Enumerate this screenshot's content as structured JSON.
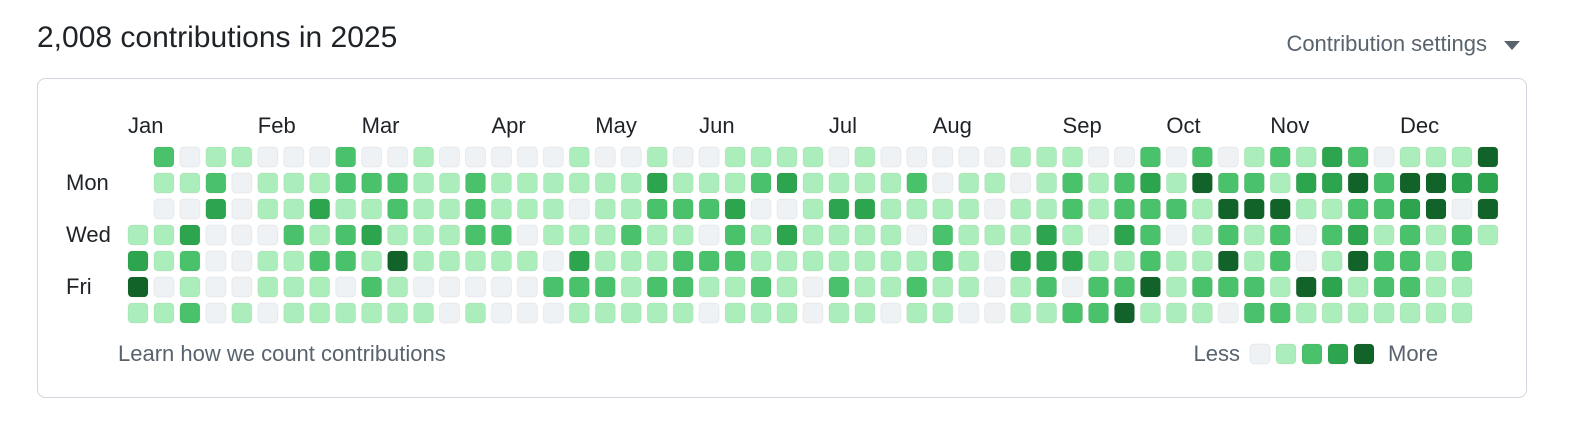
{
  "header": {
    "title": "2,008 contributions in 2025",
    "settings": "Contribution settings"
  },
  "calendar": {
    "months": [
      "Jan",
      "Feb",
      "Mar",
      "Apr",
      "May",
      "Jun",
      "Jul",
      "Aug",
      "Sep",
      "Oct",
      "Nov",
      "Dec"
    ],
    "day_labels": [
      null,
      "Mon",
      null,
      "Wed",
      null,
      "Fri",
      null
    ],
    "level_colors": [
      "#eff2f5",
      "#aceebb",
      "#4ac26b",
      "#2da44e",
      "#116329"
    ],
    "rows": [
      [
        null,
        2,
        0,
        1,
        1,
        0,
        0,
        0,
        2,
        0,
        0,
        1,
        0,
        0,
        0,
        0,
        0,
        1,
        0,
        0,
        1,
        0,
        0,
        1,
        1,
        1,
        1,
        0,
        1,
        0,
        0,
        0,
        0,
        0,
        1,
        1,
        1,
        0,
        0,
        2,
        0,
        2,
        0,
        1,
        2,
        1,
        3,
        2,
        0,
        1,
        1,
        1,
        4
      ],
      [
        null,
        1,
        1,
        2,
        0,
        1,
        1,
        1,
        2,
        2,
        2,
        1,
        1,
        2,
        1,
        1,
        1,
        1,
        1,
        1,
        3,
        1,
        1,
        1,
        2,
        3,
        1,
        1,
        1,
        1,
        2,
        0,
        1,
        1,
        0,
        1,
        2,
        1,
        2,
        3,
        1,
        4,
        2,
        2,
        1,
        3,
        3,
        4,
        2,
        4,
        4,
        3,
        3
      ],
      [
        null,
        0,
        0,
        3,
        0,
        1,
        1,
        3,
        1,
        1,
        2,
        1,
        1,
        2,
        1,
        1,
        1,
        0,
        1,
        1,
        2,
        2,
        2,
        3,
        0,
        0,
        1,
        3,
        3,
        1,
        1,
        1,
        1,
        0,
        1,
        1,
        2,
        1,
        2,
        2,
        2,
        1,
        4,
        4,
        4,
        1,
        1,
        2,
        2,
        3,
        4,
        0,
        4
      ],
      [
        1,
        1,
        3,
        0,
        0,
        0,
        2,
        1,
        2,
        3,
        1,
        1,
        1,
        2,
        2,
        0,
        1,
        1,
        1,
        2,
        1,
        1,
        0,
        2,
        1,
        3,
        1,
        1,
        1,
        1,
        0,
        2,
        1,
        1,
        1,
        3,
        1,
        0,
        3,
        2,
        0,
        1,
        2,
        1,
        2,
        0,
        2,
        3,
        1,
        2,
        1,
        2,
        1
      ],
      [
        3,
        1,
        2,
        0,
        0,
        1,
        1,
        2,
        2,
        1,
        4,
        1,
        1,
        1,
        1,
        1,
        0,
        3,
        1,
        1,
        1,
        2,
        2,
        2,
        1,
        1,
        1,
        1,
        1,
        1,
        1,
        2,
        1,
        0,
        3,
        3,
        3,
        1,
        1,
        2,
        1,
        1,
        4,
        1,
        2,
        0,
        1,
        4,
        2,
        2,
        1,
        2,
        null
      ],
      [
        4,
        0,
        1,
        0,
        0,
        1,
        1,
        1,
        0,
        2,
        1,
        0,
        0,
        0,
        0,
        0,
        2,
        2,
        2,
        1,
        2,
        2,
        1,
        1,
        2,
        1,
        0,
        2,
        1,
        1,
        2,
        1,
        1,
        0,
        1,
        2,
        0,
        2,
        2,
        4,
        1,
        2,
        2,
        2,
        1,
        4,
        3,
        1,
        2,
        2,
        1,
        1,
        null
      ],
      [
        1,
        1,
        2,
        0,
        1,
        0,
        1,
        1,
        1,
        1,
        1,
        1,
        0,
        1,
        0,
        0,
        0,
        1,
        1,
        1,
        1,
        1,
        0,
        1,
        1,
        1,
        0,
        1,
        1,
        0,
        1,
        1,
        0,
        0,
        1,
        1,
        2,
        2,
        4,
        1,
        1,
        1,
        0,
        2,
        2,
        1,
        1,
        1,
        1,
        1,
        1,
        1,
        null
      ]
    ]
  },
  "footer": {
    "link": "Learn how we count contributions",
    "less": "Less",
    "more": "More"
  }
}
